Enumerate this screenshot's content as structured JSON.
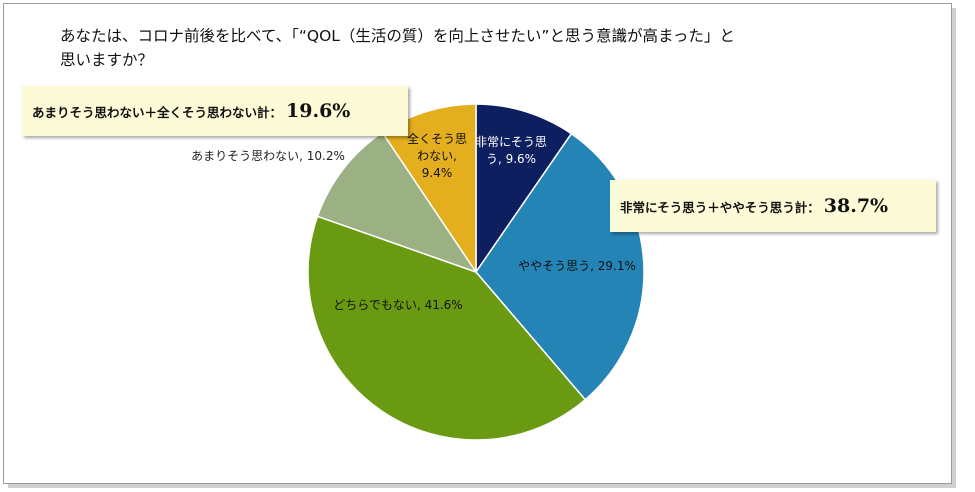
{
  "title": "あなたは、コロナ前後を比べて、「“QOL（生活の質）を向上させたい”と思う意識が高まった」と\n思いますか？",
  "callouts": {
    "negative_label": "あまりそう思わない＋全くそう思わない計：",
    "negative_value": "19.6%",
    "positive_label": "非常にそう思う＋ややそう思う計：",
    "positive_value": "38.7%"
  },
  "chart_data": {
    "type": "pie",
    "start": "12 o'clock, clockwise",
    "slices": [
      {
        "label": "非常にそう思う",
        "value": 9.6,
        "color": "#0e1f5f",
        "data_label": "非常にそう思\nう, 9.6%",
        "label_color": "#ffffff"
      },
      {
        "label": "ややそう思う",
        "value": 29.1,
        "color": "#2484b5",
        "data_label": "ややそう思う, 29.1%",
        "label_color": "#111111"
      },
      {
        "label": "どちらでもない",
        "value": 41.6,
        "color": "#6a9a12",
        "data_label": "どちらでもない, 41.6%",
        "label_color": "#111111"
      },
      {
        "label": "あまりそう思わない",
        "value": 10.2,
        "color": "#9bb083",
        "data_label": "あまりそう思わない, 10.2%",
        "label_color": "#222222"
      },
      {
        "label": "全くそう思わない",
        "value": 9.4,
        "color": "#e3af1f",
        "data_label": "全くそう思\nわない,\n9.4%",
        "label_color": "#111111"
      }
    ]
  }
}
